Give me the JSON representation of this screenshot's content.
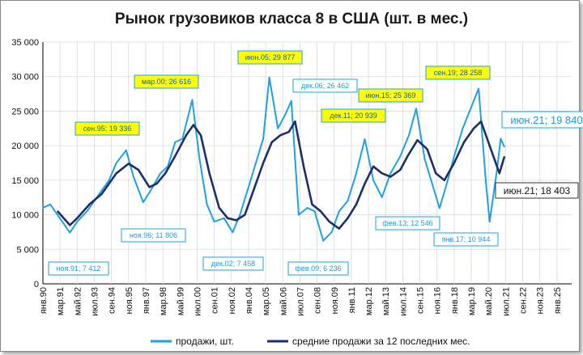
{
  "chart_data": {
    "type": "line",
    "title": "Рынок грузовиков класса 8 в США (шт. в мес.)",
    "xlabel": "",
    "ylabel": "",
    "ylim": [
      0,
      35000
    ],
    "yticks": [
      "0",
      "5 000",
      "10 000",
      "15 000",
      "20 000",
      "25 000",
      "30 000",
      "35 000"
    ],
    "xlim": [
      "янв.90",
      "янв.26"
    ],
    "xticks": [
      "янв.90",
      "мар.91",
      "май.92",
      "июл.93",
      "сен.94",
      "ноя.95",
      "янв.97",
      "мар.98",
      "май.99",
      "июл.00",
      "сен.01",
      "ноя.02",
      "янв.04",
      "мар.05",
      "май.06",
      "июл.07",
      "сен.08",
      "ноя.09",
      "янв.11",
      "мар.12",
      "май.13",
      "июл.14",
      "сен.15",
      "ноя.16",
      "янв.18",
      "мар.19",
      "май.20",
      "июл.21",
      "сен.22",
      "ноя.23",
      "янв.25"
    ],
    "grid": true,
    "legend": "bottom",
    "colors": {
      "sales": "#1ea1e0",
      "average": "#1c2f6b",
      "callout_yellow": "#ffff00",
      "callout_text": "#0f5fa8",
      "callout_border": "#1ea1e0"
    },
    "series": [
      {
        "name": "продажи, шт.",
        "x": [
          "янв.90",
          "июл.90",
          "ноя.91",
          "май.92",
          "янв.93",
          "июл.93",
          "янв.94",
          "июл.94",
          "янв.95",
          "сен.95",
          "мар.96",
          "ноя.96",
          "май.97",
          "янв.98",
          "июл.98",
          "янв.99",
          "июл.99",
          "мар.00",
          "сен.00",
          "мар.01",
          "сен.01",
          "май.02",
          "дек.02",
          "июн.03",
          "янв.04",
          "июл.04",
          "янв.05",
          "июн.05",
          "янв.06",
          "июл.06",
          "дек.06",
          "июн.07",
          "янв.08",
          "июл.08",
          "фев.09",
          "сен.09",
          "мар.10",
          "окт.10",
          "май.11",
          "дек.11",
          "июл.12",
          "фев.13",
          "сен.13",
          "май.14",
          "дек.14",
          "июн.15",
          "янв.16",
          "июл.16",
          "янв.17",
          "июл.17",
          "янв.18",
          "авг.18",
          "сен.19",
          "мар.20",
          "июн.20",
          "дек.20",
          "мар.21",
          "июн.21"
        ],
        "values": [
          11000,
          11500,
          7412,
          9000,
          10500,
          12000,
          13500,
          15000,
          17500,
          19336,
          15500,
          11806,
          13500,
          16000,
          17000,
          20500,
          21000,
          26616,
          18000,
          11500,
          9000,
          9500,
          7458,
          10000,
          14000,
          17500,
          21000,
          29877,
          22500,
          24500,
          26462,
          10000,
          11000,
          10500,
          6236,
          7500,
          10500,
          12000,
          16000,
          20939,
          15000,
          12546,
          16000,
          18500,
          21500,
          25369,
          18000,
          14500,
          10944,
          14500,
          18500,
          22500,
          28258,
          14500,
          9000,
          16500,
          21000,
          19840
        ]
      },
      {
        "name": "средние продажи за 12 последних мес.",
        "x": [
          "янв.91",
          "ноя.91",
          "май.92",
          "мар.93",
          "янв.94",
          "июл.94",
          "янв.95",
          "ноя.95",
          "июл.96",
          "апр.97",
          "окт.97",
          "май.98",
          "янв.99",
          "окт.99",
          "апр.00",
          "окт.00",
          "май.01",
          "янв.02",
          "авг.02",
          "мар.03",
          "окт.03",
          "май.04",
          "янв.05",
          "авг.05",
          "мар.06",
          "окт.06",
          "мар.07",
          "окт.07",
          "май.08",
          "дек.08",
          "июл.09",
          "мар.10",
          "окт.10",
          "май.11",
          "дек.11",
          "июл.12",
          "фев.13",
          "сен.13",
          "май.14",
          "ноя.14",
          "июл.15",
          "мар.16",
          "окт.16",
          "май.17",
          "янв.18",
          "сен.18",
          "май.19",
          "ноя.19",
          "авг.20",
          "фев.21",
          "июн.21"
        ],
        "values": [
          10500,
          8500,
          9500,
          11500,
          13000,
          14500,
          16000,
          17400,
          16500,
          14000,
          14500,
          16000,
          18500,
          21500,
          23000,
          21500,
          16000,
          11000,
          9500,
          9200,
          10000,
          13500,
          17500,
          20500,
          21500,
          22000,
          23500,
          17000,
          11500,
          10500,
          9000,
          8000,
          9500,
          11500,
          14500,
          17000,
          16000,
          15500,
          16500,
          18500,
          20800,
          19500,
          16000,
          15000,
          17500,
          20500,
          22500,
          23500,
          19000,
          16000,
          18403
        ]
      }
    ],
    "annotations": [
      {
        "label": "ноя.91; 7 412",
        "style": "white"
      },
      {
        "label": "сен.95; 19 336",
        "style": "yellow"
      },
      {
        "label": "ноя.96; 11 806",
        "style": "white"
      },
      {
        "label": "мар.00; 26 616",
        "style": "yellow"
      },
      {
        "label": "дек.02; 7 458",
        "style": "white"
      },
      {
        "label": "июн.05; 29 877",
        "style": "yellow"
      },
      {
        "label": "дек.06; 26 462",
        "style": "white"
      },
      {
        "label": "фев.09; 6 236",
        "style": "white"
      },
      {
        "label": "дек.11; 20 939",
        "style": "yellow"
      },
      {
        "label": "фев.13; 12 546",
        "style": "white"
      },
      {
        "label": "июн.15; 25 369",
        "style": "yellow"
      },
      {
        "label": "янв.17; 10 944",
        "style": "white"
      },
      {
        "label": "сен.19; 28 258",
        "style": "yellow"
      },
      {
        "label": "июн.21; 19 840",
        "style": "white-big"
      },
      {
        "label": "июн.21; 18 403",
        "style": "dark-big"
      }
    ]
  }
}
